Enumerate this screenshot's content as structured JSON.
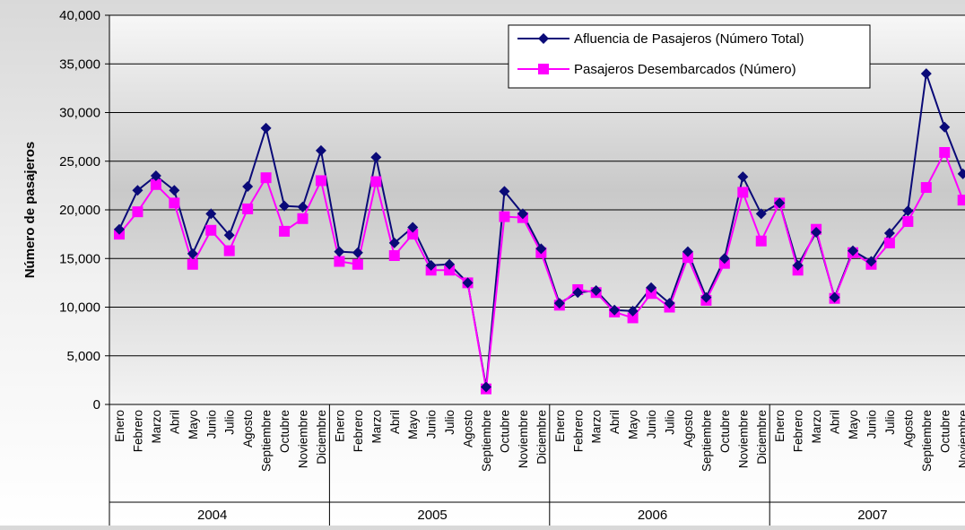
{
  "chart_data": {
    "type": "line",
    "ylabel": "Número de pasajeros",
    "ylim": [
      0,
      40000
    ],
    "y_ticks": [
      0,
      5000,
      10000,
      15000,
      20000,
      25000,
      30000,
      35000,
      40000
    ],
    "y_tick_labels": [
      "0",
      "5,000",
      "10,000",
      "15,000",
      "20,000",
      "25,000",
      "30,000",
      "35,000",
      "40,000"
    ],
    "grid": true,
    "legend_position": "top-right",
    "months": [
      "Enero",
      "Febrero",
      "Marzo",
      "Abril",
      "Mayo",
      "Junio",
      "Julio",
      "Agosto",
      "Septiembre",
      "Octubre",
      "Noviembre",
      "Diciembre"
    ],
    "years": [
      "2004",
      "2005",
      "2006",
      "2007"
    ],
    "series": [
      {
        "name": "Afluencia de Pasajeros (Número Total)",
        "color": "#0a0a78",
        "marker": "diamond",
        "values": [
          18000,
          22000,
          23500,
          22000,
          15500,
          19600,
          17400,
          22400,
          28400,
          20400,
          20300,
          26100,
          15700,
          15600,
          25400,
          16600,
          18200,
          14300,
          14400,
          12500,
          1800,
          21900,
          19600,
          16000,
          10400,
          11500,
          11700,
          9700,
          9600,
          12000,
          10400,
          15700,
          11000,
          15000,
          23400,
          19600,
          20700,
          14300,
          17700,
          11000,
          15800,
          14700,
          17600,
          19900,
          34000,
          28500,
          23700
        ]
      },
      {
        "name": "Pasajeros Desembarcados (Número)",
        "color": "#ff00ff",
        "marker": "square",
        "values": [
          17500,
          19800,
          22600,
          20700,
          14400,
          17900,
          15800,
          20100,
          23300,
          17800,
          19100,
          23000,
          14700,
          14400,
          22900,
          15300,
          17500,
          13800,
          13800,
          12500,
          1600,
          19300,
          19200,
          15600,
          10200,
          11800,
          11500,
          9500,
          8900,
          11400,
          10000,
          15100,
          10700,
          14500,
          21800,
          16800,
          20700,
          13800,
          18000,
          10900,
          15600,
          14400,
          16600,
          18800,
          22300,
          25900,
          21000
        ]
      }
    ]
  }
}
